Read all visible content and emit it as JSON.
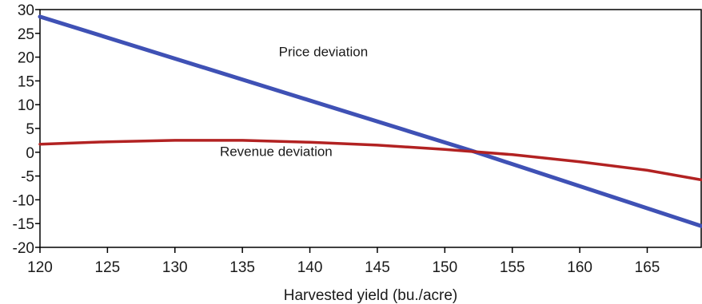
{
  "chart_data": {
    "type": "line",
    "title": "",
    "xlabel": "Harvested yield (bu./acre)",
    "ylabel": "",
    "xlim": [
      120,
      169
    ],
    "ylim": [
      -20,
      30
    ],
    "x_ticks": [
      120,
      125,
      130,
      135,
      140,
      145,
      150,
      155,
      160,
      165
    ],
    "y_ticks": [
      30,
      25,
      20,
      15,
      10,
      5,
      0,
      -5,
      -10,
      -15,
      -20
    ],
    "grid": false,
    "legend": "none",
    "series": [
      {
        "name": "Price deviation",
        "color": "#3f51b5",
        "points": [
          {
            "x": 120,
            "y": 28.5
          },
          {
            "x": 152,
            "y": 0.3
          },
          {
            "x": 169,
            "y": -15.5
          }
        ]
      },
      {
        "name": "Revenue deviation",
        "color": "#b22222",
        "points": [
          {
            "x": 120,
            "y": 1.7
          },
          {
            "x": 125,
            "y": 2.2
          },
          {
            "x": 130,
            "y": 2.5
          },
          {
            "x": 135,
            "y": 2.5
          },
          {
            "x": 140,
            "y": 2.1
          },
          {
            "x": 145,
            "y": 1.5
          },
          {
            "x": 150,
            "y": 0.6
          },
          {
            "x": 155,
            "y": -0.5
          },
          {
            "x": 160,
            "y": -2.0
          },
          {
            "x": 165,
            "y": -3.8
          },
          {
            "x": 169,
            "y": -5.8
          }
        ]
      }
    ],
    "annotations": [
      {
        "text": "Price deviation",
        "x": 141,
        "y": 20.2
      },
      {
        "text": "Revenue deviation",
        "x": 137.5,
        "y": -0.8
      }
    ]
  }
}
